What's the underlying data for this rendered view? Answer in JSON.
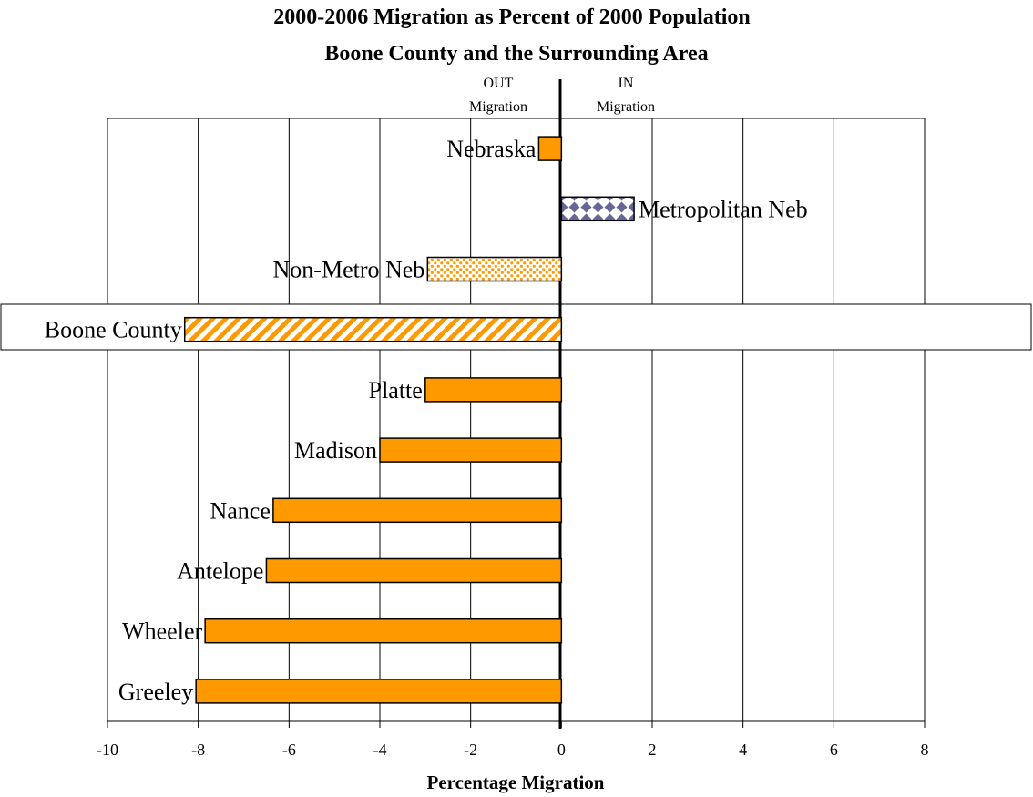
{
  "chart_data": {
    "type": "bar",
    "orientation": "horizontal",
    "title": "2000-2006 Migration as Percent of 2000 Population",
    "subtitle": "Boone County and the Surrounding Area",
    "xlabel": "Percentage Migration",
    "ylabel": "",
    "xlim": [
      -10,
      8
    ],
    "x_ticks": [
      "-10",
      "-8",
      "-6",
      "-4",
      "-2",
      "0",
      "2",
      "4",
      "6",
      "8"
    ],
    "grid": true,
    "legend": "none",
    "annotations": {
      "out_line1": "OUT",
      "out_line2": "Migration",
      "in_line1": "IN",
      "in_line2": "Migration"
    },
    "highlighted_category": "Boone County",
    "categories": [
      "Nebraska",
      "Metropolitan Neb",
      "Non-Metro Neb",
      "Boone County",
      "Platte",
      "Madison",
      "Nance",
      "Antelope",
      "Wheeler",
      "Greeley"
    ],
    "values": [
      -0.5,
      1.6,
      -2.95,
      -8.3,
      -3.0,
      -4.0,
      -6.35,
      -6.5,
      -7.85,
      -8.05
    ],
    "fills": [
      "solid",
      "diamond",
      "dots",
      "stripes",
      "solid",
      "solid",
      "solid",
      "solid",
      "solid",
      "solid"
    ],
    "colors": {
      "bar": "#ff9900",
      "metro": "#666699",
      "stroke": "#000000",
      "background": "#ffffff"
    }
  }
}
